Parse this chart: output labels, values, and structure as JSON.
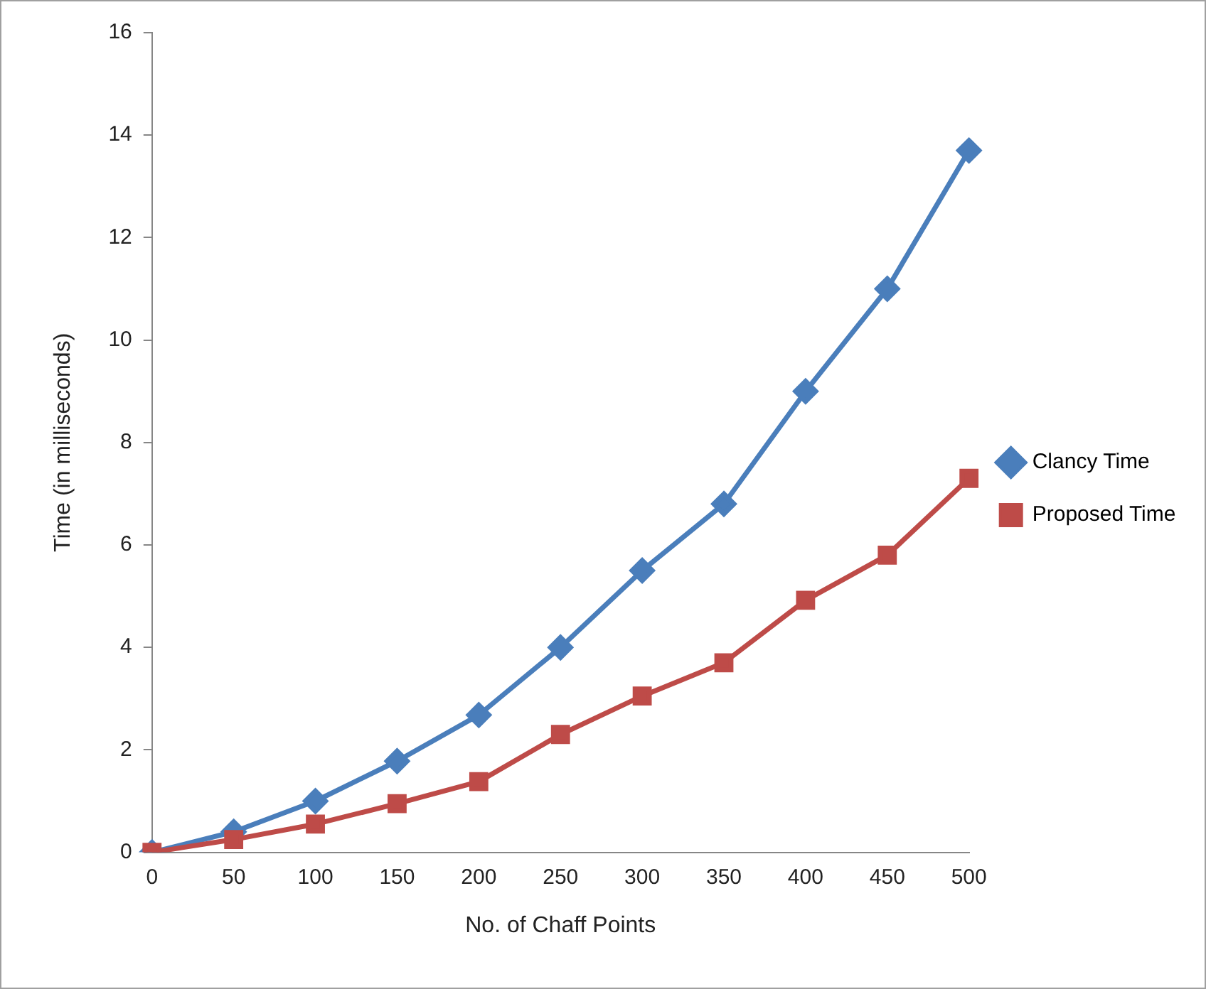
{
  "chart_data": {
    "type": "line",
    "xlabel": "No. of Chaff Points",
    "ylabel": "Time (in milliseconds)",
    "categories": [
      "0",
      "50",
      "100",
      "150",
      "200",
      "250",
      "300",
      "350",
      "400",
      "450",
      "500"
    ],
    "series": [
      {
        "name": "Clancy Time",
        "color": "#4a7ebb",
        "marker": "diamond",
        "values": [
          0,
          0.4,
          1.0,
          1.78,
          2.68,
          4.0,
          5.5,
          6.8,
          9.0,
          11.0,
          13.7
        ]
      },
      {
        "name": "Proposed Time",
        "color": "#be4b48",
        "marker": "square",
        "values": [
          0,
          0.25,
          0.55,
          0.95,
          1.38,
          2.3,
          3.05,
          3.7,
          4.92,
          5.8,
          7.3
        ]
      }
    ],
    "ylim": [
      0,
      16
    ],
    "yticks": [
      0,
      2,
      4,
      6,
      8,
      10,
      12,
      14,
      16
    ],
    "grid": false,
    "legend": "right"
  }
}
